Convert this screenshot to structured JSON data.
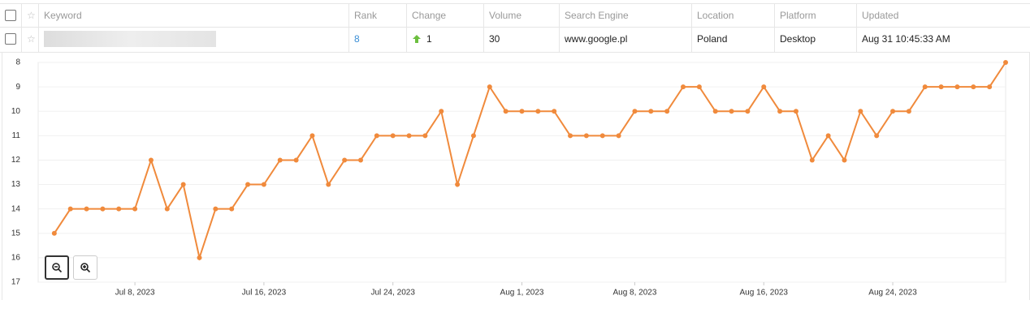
{
  "table": {
    "headers": [
      "Keyword",
      "Rank",
      "Change",
      "Volume",
      "Search Engine",
      "Location",
      "Platform",
      "Updated"
    ],
    "row": {
      "rank": "8",
      "change": "1",
      "volume": "30",
      "search_engine": "www.google.pl",
      "location": "Poland",
      "platform": "Desktop",
      "updated": "Aug 31 10:45:33 AM"
    }
  },
  "chart_data": {
    "type": "line",
    "x": [
      "2023-07-03",
      "2023-07-04",
      "2023-07-05",
      "2023-07-06",
      "2023-07-07",
      "2023-07-08",
      "2023-07-09",
      "2023-07-10",
      "2023-07-11",
      "2023-07-12",
      "2023-07-13",
      "2023-07-14",
      "2023-07-15",
      "2023-07-16",
      "2023-07-17",
      "2023-07-18",
      "2023-07-19",
      "2023-07-20",
      "2023-07-21",
      "2023-07-22",
      "2023-07-23",
      "2023-07-24",
      "2023-07-25",
      "2023-07-26",
      "2023-07-27",
      "2023-07-28",
      "2023-07-29",
      "2023-07-30",
      "2023-07-31",
      "2023-08-01",
      "2023-08-02",
      "2023-08-03",
      "2023-08-04",
      "2023-08-05",
      "2023-08-06",
      "2023-08-07",
      "2023-08-08",
      "2023-08-09",
      "2023-08-10",
      "2023-08-11",
      "2023-08-12",
      "2023-08-13",
      "2023-08-14",
      "2023-08-15",
      "2023-08-16",
      "2023-08-17",
      "2023-08-18",
      "2023-08-19",
      "2023-08-20",
      "2023-08-21",
      "2023-08-22",
      "2023-08-23",
      "2023-08-24",
      "2023-08-25",
      "2023-08-26",
      "2023-08-27",
      "2023-08-28",
      "2023-08-29",
      "2023-08-30",
      "2023-08-31"
    ],
    "series": [
      {
        "color": "#f08a3c",
        "values": [
          15,
          14,
          14,
          14,
          14,
          14,
          12,
          14,
          13,
          16,
          14,
          14,
          13,
          13,
          12,
          12,
          11,
          13,
          12,
          12,
          11,
          11,
          11,
          11,
          10,
          13,
          11,
          9,
          10,
          10,
          10,
          10,
          11,
          11,
          11,
          11,
          10,
          10,
          10,
          9,
          9,
          10,
          10,
          10,
          9,
          10,
          10,
          12,
          11,
          12,
          10,
          11,
          10,
          10,
          9,
          9,
          9,
          9,
          9,
          8
        ]
      }
    ],
    "xlim": [
      "2023-07-02",
      "2023-08-31"
    ],
    "xticks": [
      {
        "value": "2023-07-08",
        "label": "Jul 8, 2023"
      },
      {
        "value": "2023-07-16",
        "label": "Jul 16, 2023"
      },
      {
        "value": "2023-07-24",
        "label": "Jul 24, 2023"
      },
      {
        "value": "2023-08-01",
        "label": "Aug 1, 2023"
      },
      {
        "value": "2023-08-08",
        "label": "Aug 8, 2023"
      },
      {
        "value": "2023-08-16",
        "label": "Aug 16, 2023"
      },
      {
        "value": "2023-08-24",
        "label": "Aug 24, 2023"
      }
    ],
    "ylim": [
      17,
      8
    ],
    "yticks": [
      8,
      9,
      10,
      11,
      12,
      13,
      14,
      15,
      16,
      17
    ],
    "grid": true
  }
}
